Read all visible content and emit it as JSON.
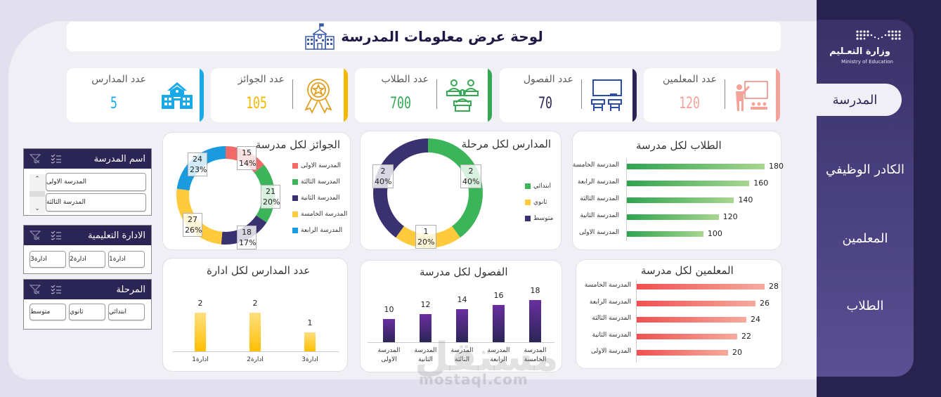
{
  "header": {
    "title": "لوحة عرض معلومات المدرسة",
    "icon": "school-building-icon"
  },
  "sidebar": {
    "logo": {
      "ar": "وزارة التعـليم",
      "en": "Ministry of Education"
    },
    "items": [
      {
        "label": "المدرسة",
        "active": true
      },
      {
        "label": "الكادر الوظيفي",
        "active": false
      },
      {
        "label": "المعلمين",
        "active": false
      },
      {
        "label": "الطلاب",
        "active": false
      }
    ]
  },
  "kpis": [
    {
      "label": "عدد المعلمين",
      "value": "120",
      "color": "#f4a39a",
      "icon": "teacher-board-icon"
    },
    {
      "label": "عدد الفصول",
      "value": "70",
      "color": "#2b2556",
      "icon": "classroom-desks-icon"
    },
    {
      "label": "عدد الطلاب",
      "value": "700",
      "color": "#34a853",
      "icon": "students-desks-icon"
    },
    {
      "label": "عدد الجوائز",
      "value": "105",
      "color": "#f5b800",
      "icon": "award-medal-icon"
    },
    {
      "label": "عدد المدارس",
      "value": "5",
      "color": "#19a9e8",
      "icon": "school-icon"
    }
  ],
  "slicers": {
    "school": {
      "title": "اسم المدرسة",
      "items": [
        "المدرسة الاولى",
        "المدرسة الثالثة"
      ]
    },
    "admin": {
      "title": "الادارة التعليمية",
      "items": [
        "ادارة1",
        "ادارة2",
        "ادارة3"
      ]
    },
    "stage": {
      "title": "المرحلة",
      "items": [
        "ابتدائي",
        "ثانوي",
        "متوسط"
      ]
    }
  },
  "chart_data": [
    {
      "type": "bar",
      "orientation": "horizontal",
      "title": "الطلاب لكل مدرسة",
      "categories": [
        "المدرسة الخامسة",
        "المدرسة الرابعة",
        "المدرسة الثالثة",
        "المدرسة الثانية",
        "المدرسة الاولى"
      ],
      "values": [
        180,
        160,
        140,
        120,
        100
      ],
      "color": "#3aa655"
    },
    {
      "type": "pie",
      "variant": "donut",
      "title": "المدارس لكل مرحلة",
      "categories": [
        "ابتدائي",
        "ثانوي",
        "متوسط"
      ],
      "values": [
        2,
        1,
        2
      ],
      "percents": [
        "40%",
        "20%",
        "40%"
      ],
      "colors": [
        "#3cb55a",
        "#ffcb3d",
        "#3a3270"
      ],
      "legend_position": "right"
    },
    {
      "type": "pie",
      "variant": "donut",
      "title": "الجوائز لكل مدرسة",
      "categories": [
        "المدرسة الاولى",
        "المدرسة الثالثة",
        "المدرسة الثانية",
        "المدرسة الخامسة",
        "المدرسة الرابعة"
      ],
      "values": [
        15,
        21,
        18,
        27,
        24
      ],
      "percents": [
        "14%",
        "20%",
        "17%",
        "26%",
        "23%"
      ],
      "colors": [
        "#f06a6a",
        "#3cb55a",
        "#3a3270",
        "#ffcb3d",
        "#1a9be0"
      ],
      "legend_position": "right"
    },
    {
      "type": "bar",
      "orientation": "horizontal",
      "title": "المعلمين لكل مدرسة",
      "categories": [
        "المدرسة الخامسة",
        "المدرسة الرابعة",
        "المدرسة الثالثة",
        "المدرسة الثانية",
        "المدرسة الاولى"
      ],
      "values": [
        28,
        26,
        24,
        22,
        20
      ],
      "color": "#f06060"
    },
    {
      "type": "bar",
      "orientation": "vertical",
      "title": "الفصول لكل مدرسة",
      "categories": [
        "المدرسة الاولى",
        "المدرسة الثانية",
        "المدرسة الثالثة",
        "المدرسة الرابعة",
        "المدرسة الخامسة"
      ],
      "values": [
        10,
        12,
        14,
        16,
        18
      ],
      "color": "#6a2fa0"
    },
    {
      "type": "bar",
      "orientation": "vertical",
      "title": "عدد المدارس لكل ادارة",
      "categories": [
        "ادارة1",
        "ادارة2",
        "ادارة3"
      ],
      "values": [
        2,
        2,
        1
      ],
      "color": "#ffcb3d"
    }
  ],
  "watermark": {
    "ar": "مستقل",
    "en": "mostaql.com"
  }
}
